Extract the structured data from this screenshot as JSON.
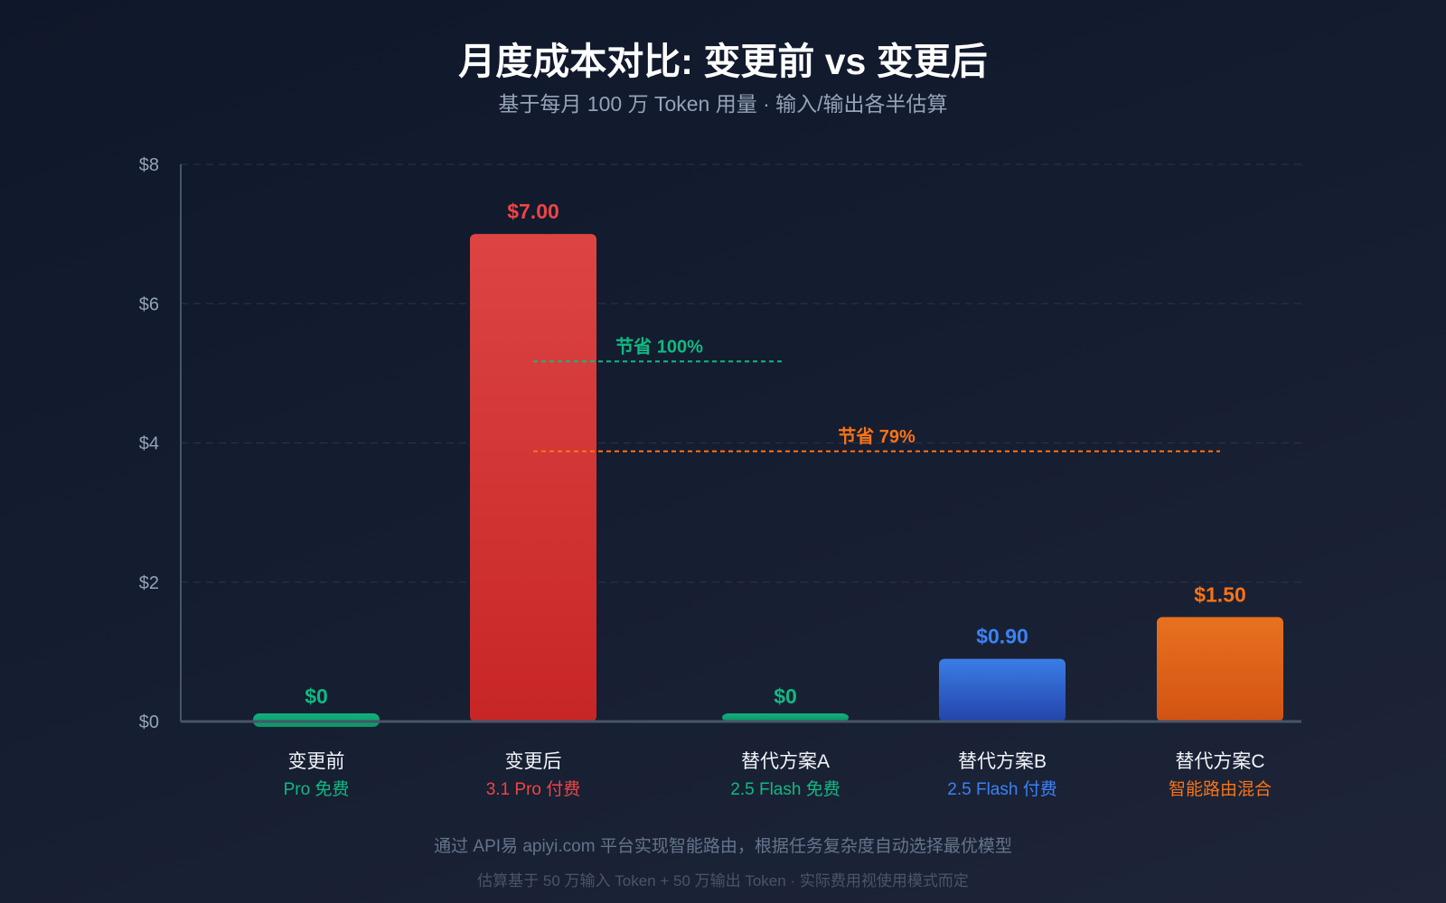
{
  "chart_data": {
    "type": "bar",
    "title": "月度成本对比: 变更前 vs 变更后",
    "subtitle": "基于每月 100 万 Token 用量 · 输入/输出各半估算",
    "ylim": [
      0,
      8
    ],
    "yticks": [
      "$0",
      "$2",
      "$4",
      "$6",
      "$8"
    ],
    "ytick_values": [
      0,
      2,
      4,
      6,
      8
    ],
    "grid": true,
    "categories": [
      "变更前",
      "变更后",
      "替代方案A",
      "替代方案B",
      "替代方案C"
    ],
    "sublabels": [
      "Pro 免费",
      "3.1 Pro 付费",
      "2.5 Flash 免费",
      "2.5 Flash 付费",
      "智能路由混合"
    ],
    "values": [
      0,
      7.0,
      0,
      0.9,
      1.5
    ],
    "value_labels": [
      "$0",
      "$7.00",
      "$0",
      "$0.90",
      "$1.50"
    ],
    "colors": [
      "#10b981",
      "#ef4444",
      "#10b981",
      "#3b82f6",
      "#f97316"
    ],
    "annotations": [
      {
        "text": "节省 100%",
        "color": "#10b981",
        "from": "变更后",
        "to": "替代方案A",
        "y": 5.17
      },
      {
        "text": "节省 79%",
        "color": "#f97316",
        "from": "变更后",
        "to": "替代方案C",
        "y": 3.88
      }
    ]
  },
  "footer": {
    "line1": "通过 API易 apiyi.com 平台实现智能路由，根据任务复杂度自动选择最优模型",
    "line2": "估算基于 50 万输入 Token + 50 万输出 Token · 实际费用视使用模式而定"
  }
}
